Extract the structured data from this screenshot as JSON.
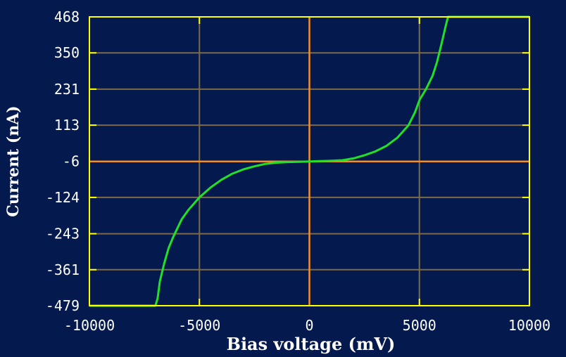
{
  "chart_data": {
    "type": "line",
    "title": "",
    "xlabel": "Bias voltage (mV)",
    "ylabel": "Current (nA)",
    "xlim": [
      -10000,
      10000
    ],
    "ylim": [
      -479,
      468
    ],
    "x_ticks": [
      -10000,
      -5000,
      0,
      5000,
      10000
    ],
    "x_tick_labels": [
      "-10000",
      "-5000",
      "0",
      "5000",
      "10000"
    ],
    "y_ticks": [
      468,
      350,
      231,
      113,
      -6,
      -124,
      -243,
      -361,
      -479
    ],
    "y_tick_labels": [
      "468",
      "350",
      "231",
      "113",
      "-6",
      "-124",
      "-243",
      "-361",
      "-479"
    ],
    "grid": true,
    "series": [
      {
        "color": "#22e02a",
        "x": [
          -10000,
          -7000,
          -6900,
          -6800,
          -6600,
          -6400,
          -6200,
          -6000,
          -5800,
          -5500,
          -5000,
          -4500,
          -4000,
          -3500,
          -3000,
          -2500,
          -2000,
          -1500,
          -1000,
          -500,
          0,
          500,
          1000,
          1500,
          2000,
          2500,
          3000,
          3500,
          4000,
          4500,
          4800,
          5000,
          5300,
          5600,
          5800,
          6000,
          6200,
          6300,
          10000
        ],
        "y": [
          -479,
          -479,
          -455,
          -400,
          -340,
          -290,
          -255,
          -225,
          -195,
          -165,
          -124,
          -92,
          -66,
          -46,
          -32,
          -22,
          -14,
          -10,
          -8,
          -7,
          -6,
          -5,
          -4,
          -2,
          4,
          14,
          27,
          45,
          72,
          112,
          155,
          195,
          231,
          275,
          320,
          378,
          440,
          468,
          468
        ]
      }
    ],
    "colors": {
      "background": "#041a4f",
      "frame": "#ffff00",
      "grid": "#7a6a4a",
      "zero_lines": "#f0902a",
      "curve": "#22e02a",
      "text": "#ffffff"
    }
  }
}
